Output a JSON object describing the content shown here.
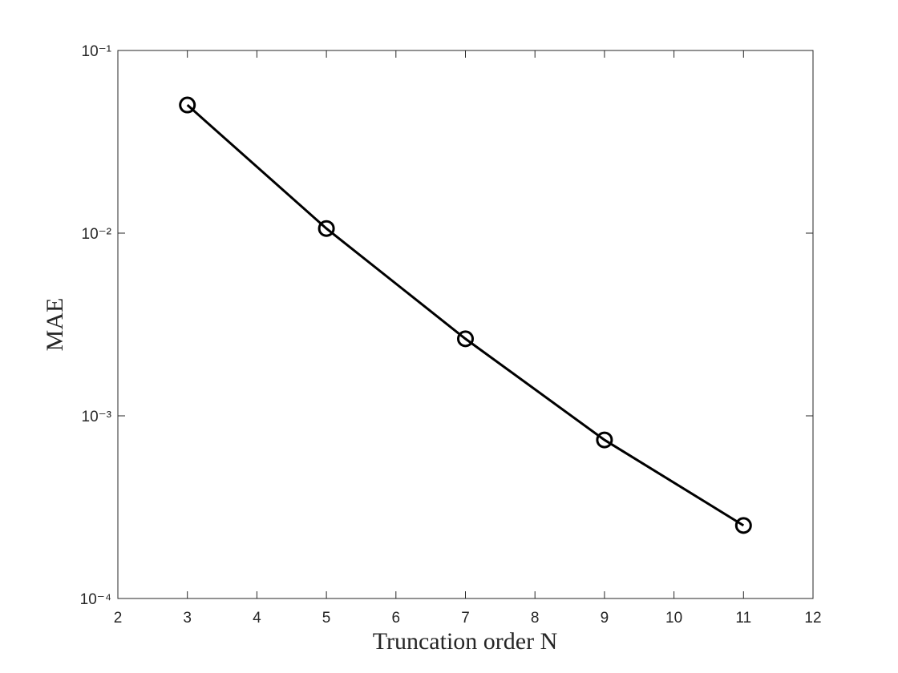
{
  "chart_data": {
    "type": "line",
    "xlabel": "Truncation order N",
    "ylabel": "MAE",
    "x": [
      3,
      5,
      7,
      9,
      11
    ],
    "series": [
      {
        "color": "#000000",
        "marker": "circle",
        "values": [
          0.0503,
          0.0106,
          0.00264,
          0.000738,
          0.000251
        ]
      }
    ],
    "xlim": [
      2,
      12
    ],
    "xticks": [
      2,
      3,
      4,
      5,
      6,
      7,
      8,
      9,
      10,
      11,
      12
    ],
    "ylim": [
      0.0001,
      0.1
    ],
    "ylog": true,
    "yticks": [
      {
        "value": 0.0001,
        "label": "10⁻⁴"
      },
      {
        "value": 0.001,
        "label": "10⁻³"
      },
      {
        "value": 0.01,
        "label": "10⁻²"
      },
      {
        "value": 0.1,
        "label": "10⁻¹"
      }
    ],
    "grid": false
  }
}
